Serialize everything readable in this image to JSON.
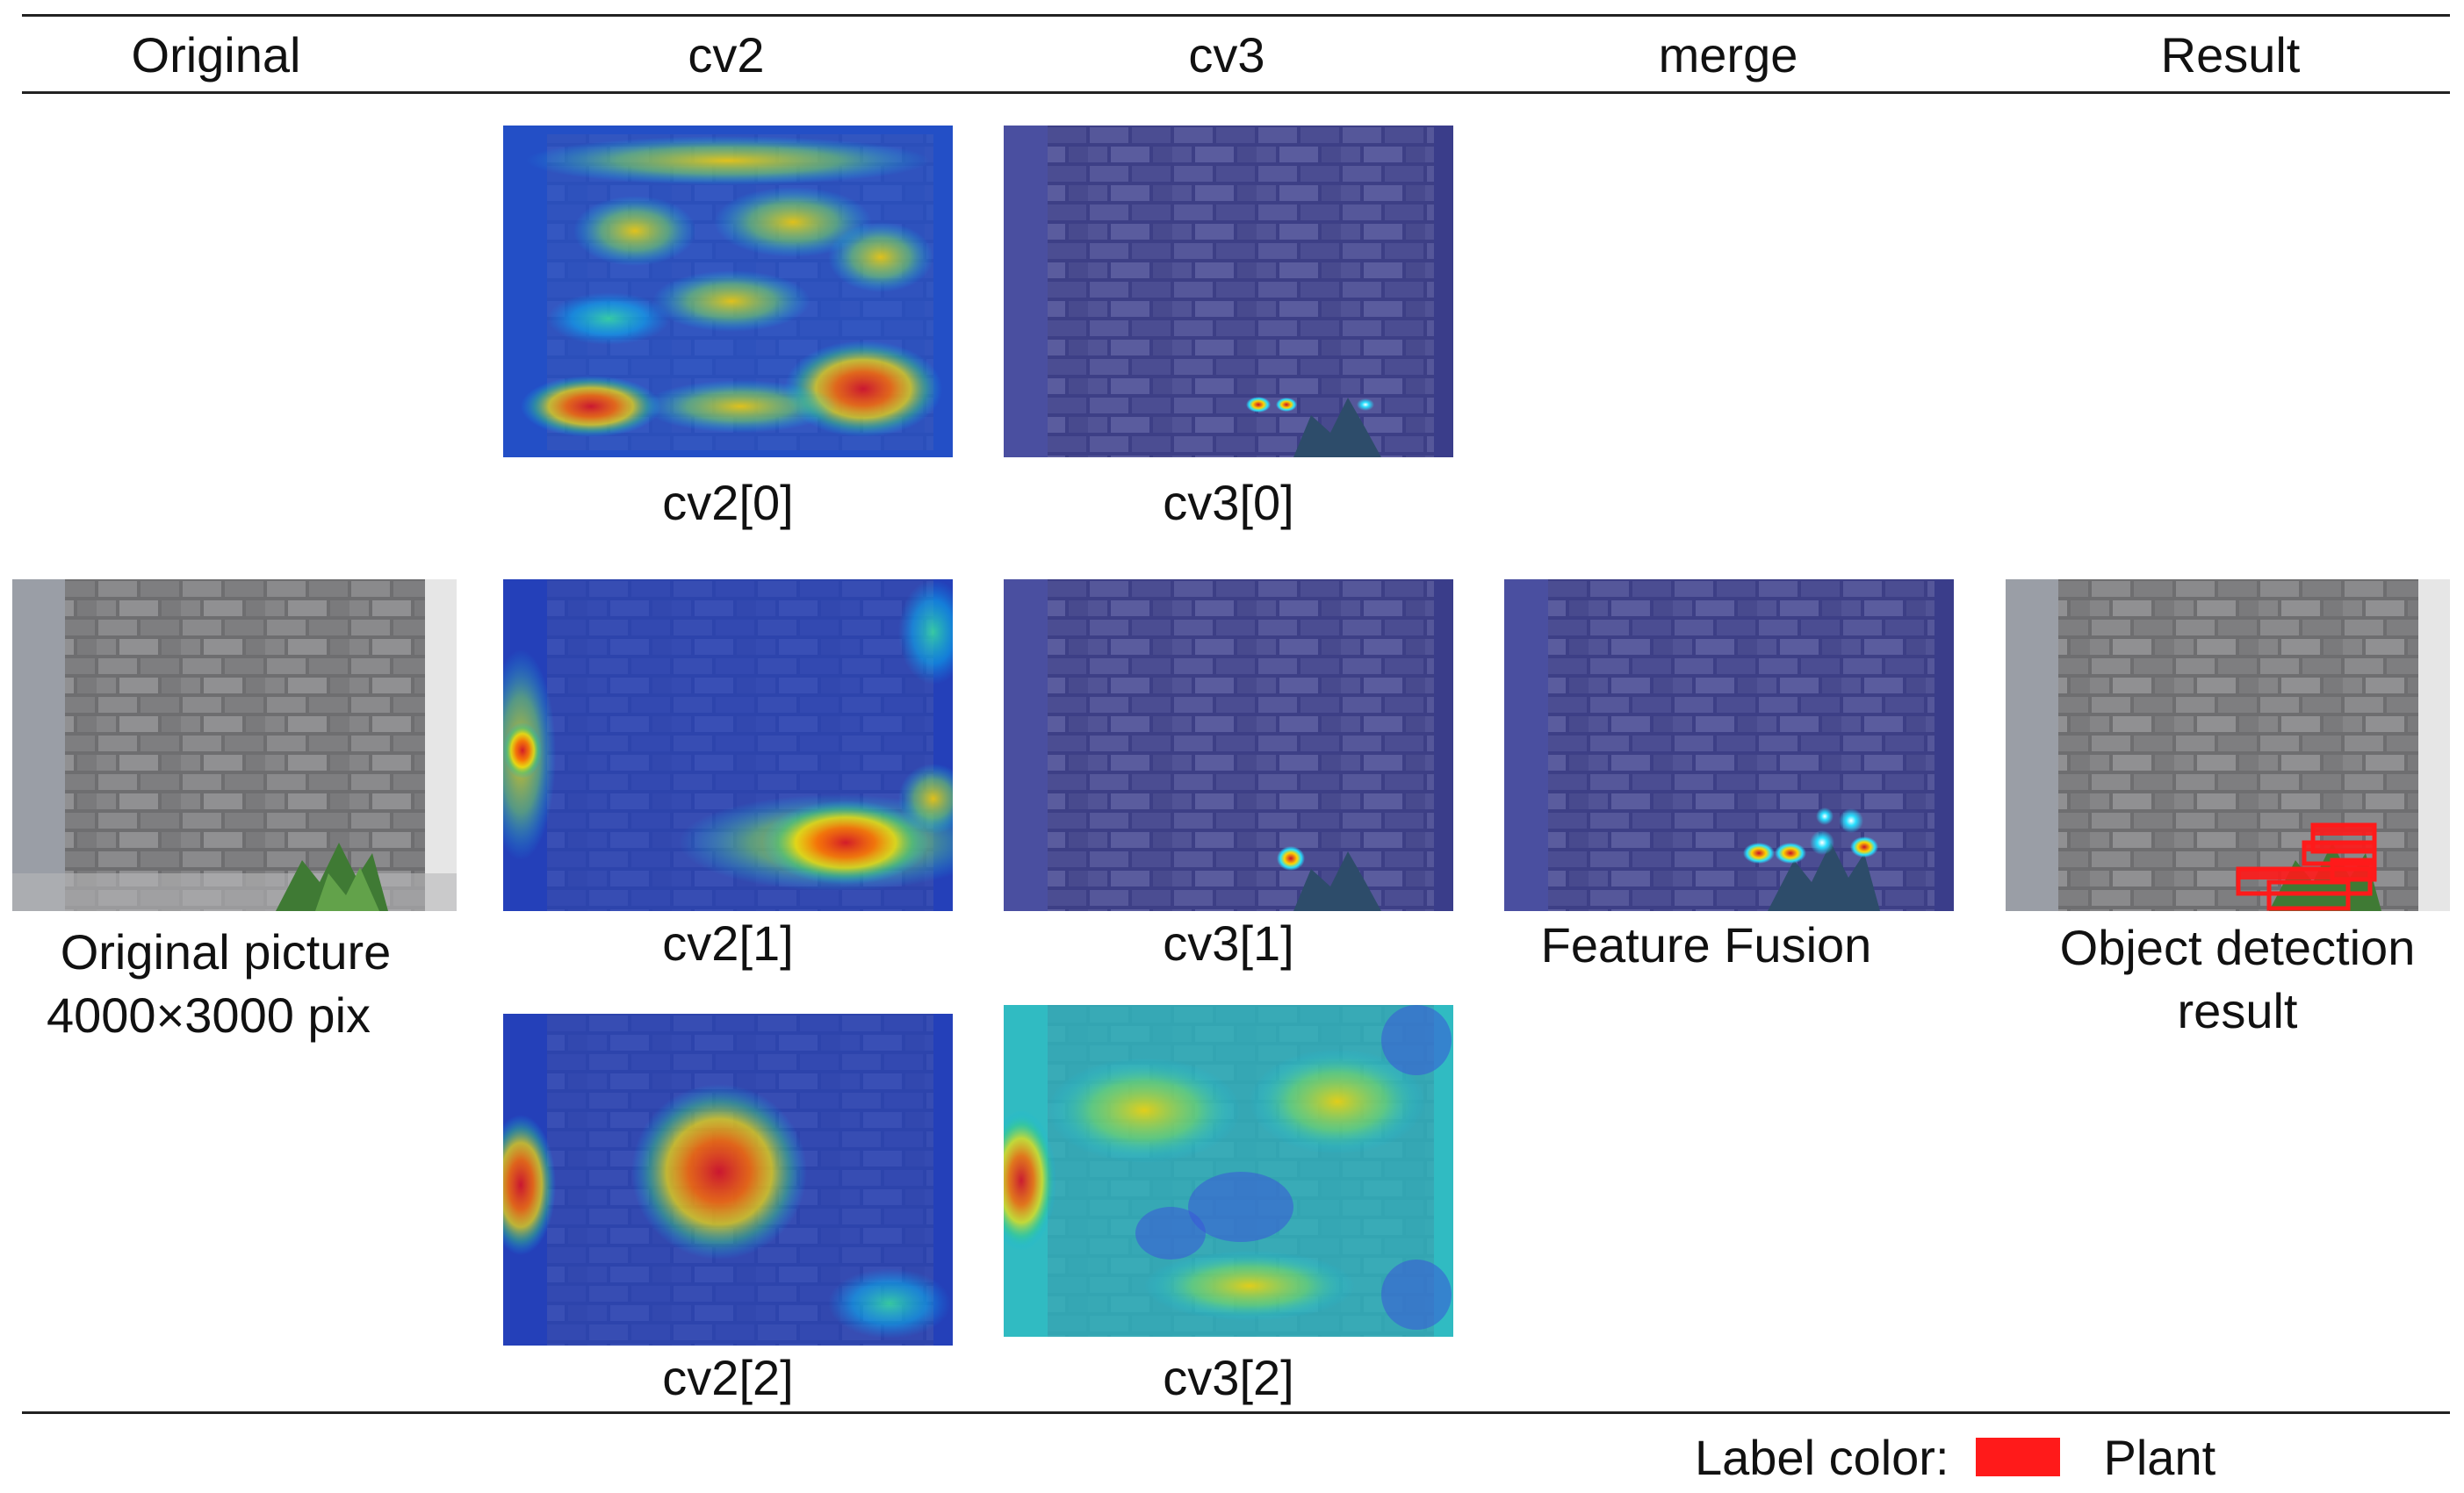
{
  "columns": {
    "original": "Original",
    "cv2": "cv2",
    "cv3": "cv3",
    "merge": "merge",
    "result": "Result"
  },
  "panels": {
    "cv2_0": "cv2[0]",
    "cv3_0": "cv3[0]",
    "cv2_1": "cv2[1]",
    "cv3_1": "cv3[1]",
    "cv2_2": "cv2[2]",
    "cv3_2": "cv3[2]",
    "original_line1": "Original picture",
    "original_line2": "4000×3000 pix",
    "merge": "Feature Fusion",
    "result_line1": "Object detection",
    "result_line2": "result"
  },
  "legend": {
    "prefix": "Label color:",
    "label": "Plant",
    "color": "#ff1a1a"
  }
}
